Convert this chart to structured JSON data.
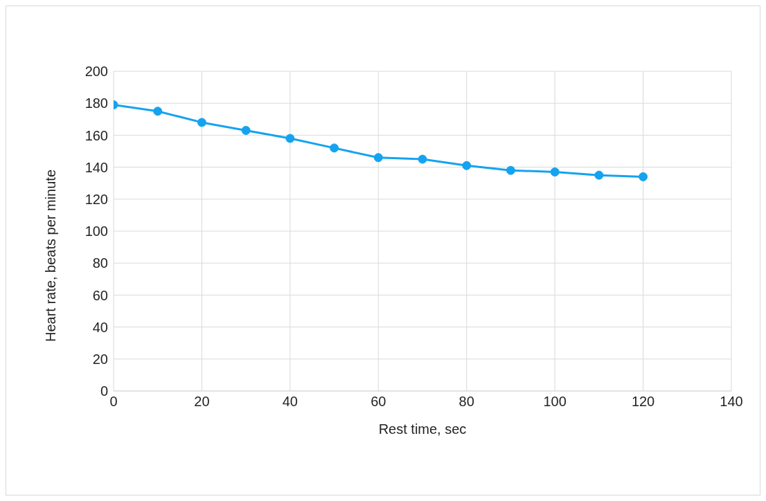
{
  "chart_data": {
    "type": "line",
    "xlabel": "Rest time, sec",
    "ylabel": "Heart rate, beats per minute",
    "x": [
      0,
      10,
      20,
      30,
      40,
      50,
      60,
      70,
      80,
      90,
      100,
      110,
      120
    ],
    "series": [
      {
        "color": "#14a3f0",
        "values": [
          179,
          175,
          168,
          163,
          158,
          152,
          146,
          145,
          141,
          138,
          137,
          135,
          134
        ]
      }
    ],
    "xlim": [
      0,
      140
    ],
    "xticks": [
      0,
      20,
      40,
      60,
      80,
      100,
      120,
      140
    ],
    "ylim": [
      0,
      200
    ],
    "yticks": [
      0,
      20,
      40,
      60,
      80,
      100,
      120,
      140,
      160,
      180,
      200
    ],
    "grid": true,
    "legend": false,
    "marker": "circle",
    "line_style": "solid"
  }
}
